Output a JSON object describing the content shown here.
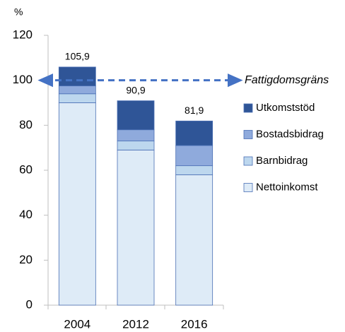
{
  "chart_data": {
    "type": "stacked_bar",
    "y_label": "%",
    "categories": [
      "2004",
      "2012",
      "2016"
    ],
    "series": [
      {
        "name": "Nettoinkomst",
        "color": "#deebf7",
        "values": [
          90,
          69,
          58
        ]
      },
      {
        "name": "Barnbidrag",
        "color": "#bdd7ee",
        "values": [
          4,
          4,
          4
        ]
      },
      {
        "name": "Bostadsbidrag",
        "color": "#8faadc",
        "values": [
          3.5,
          5,
          9
        ]
      },
      {
        "name": "Utkomststöd",
        "color": "#2f5597",
        "values": [
          8.4,
          12.9,
          10.9
        ]
      }
    ],
    "totals": [
      105.9,
      90.9,
      81.9
    ],
    "total_labels": [
      "105,9",
      "90,9",
      "81,9"
    ],
    "annotation": {
      "text": "Fattigdomsgräns",
      "value": 100,
      "color": "#4472c4"
    },
    "ylim": [
      0,
      120
    ],
    "yticks": [
      0,
      20,
      40,
      60,
      80,
      100,
      120
    ],
    "legend": "right"
  }
}
